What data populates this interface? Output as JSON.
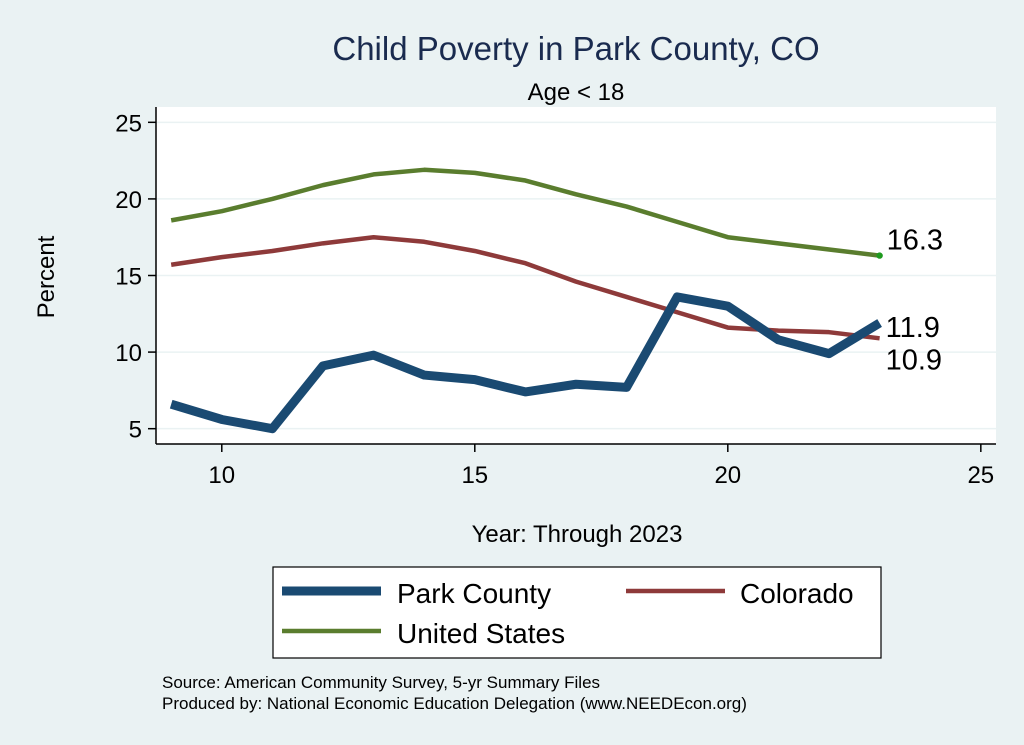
{
  "chart_data": {
    "type": "line",
    "title": "Child Poverty in Park County, CO",
    "subtitle": "Age < 18",
    "xlabel": "Year: Through 2023",
    "ylabel": "Percent",
    "xlim": [
      8.7,
      25.3
    ],
    "ylim": [
      4.0,
      26.0
    ],
    "xticks": [
      "10",
      "15",
      "20",
      "25"
    ],
    "yticks": [
      "5",
      "10",
      "15",
      "20",
      "25"
    ],
    "grid": true,
    "legend_position": "bottom",
    "x": [
      9,
      10,
      11,
      12,
      13,
      14,
      15,
      16,
      17,
      18,
      19,
      20,
      21,
      22,
      23
    ],
    "series": [
      {
        "name": "Park County",
        "color": "#1a4a72",
        "values": [
          6.6,
          5.6,
          5.0,
          9.1,
          9.8,
          8.5,
          8.2,
          7.4,
          7.9,
          7.7,
          13.6,
          13.0,
          10.8,
          9.9,
          11.9
        ],
        "end_label": "11.9"
      },
      {
        "name": "Colorado",
        "color": "#8e3a3a",
        "values": [
          15.7,
          16.2,
          16.6,
          17.1,
          17.5,
          17.2,
          16.6,
          15.8,
          14.6,
          13.6,
          12.6,
          11.6,
          11.4,
          11.3,
          10.9
        ],
        "end_label": "10.9"
      },
      {
        "name": "United States",
        "color": "#5a7d2e",
        "values": [
          18.6,
          19.2,
          20.0,
          20.9,
          21.6,
          21.9,
          21.7,
          21.2,
          20.3,
          19.5,
          18.5,
          17.5,
          17.1,
          16.7,
          16.3
        ],
        "end_label": "16.3"
      }
    ],
    "notes": [
      "Source: American Community Survey, 5-yr Summary Files",
      "Produced by: National Economic Education Delegation (www.NEEDEcon.org)"
    ]
  }
}
